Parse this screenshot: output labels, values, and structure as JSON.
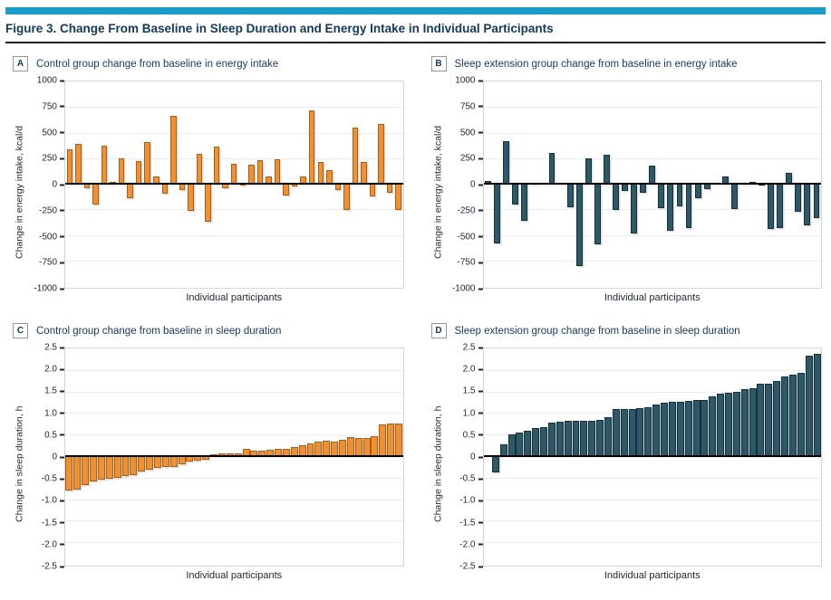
{
  "banner_color": "#1B9CC6",
  "figure": {
    "title": "Figure 3. Change From Baseline in Sleep Duration and Energy Intake in Individual Participants"
  },
  "colors": {
    "control_fill": "#EF9133",
    "control_border": "#A95E17",
    "extension_fill": "#2E5866",
    "extension_border": "#13303E",
    "heading_navy": "#13395E",
    "zero_line": "#000000",
    "gridline": "#ECECEC"
  },
  "chart_data": [
    {
      "panel": "A",
      "type": "bar",
      "title": "Control group change from baseline in energy intake",
      "ylabel": "Change in energy intake, kcal/d",
      "xlabel": "Individual participants",
      "ylim": [
        -1000,
        1000
      ],
      "yticks": [
        "1000",
        "750",
        "500",
        "250",
        "0",
        "-250",
        "-500",
        "-750",
        "-1000"
      ],
      "grid": true,
      "legend": "none",
      "bar_color": "#EF9133",
      "bar_border": "#A95E17",
      "bar_fill_ratio": 0.68,
      "values": [
        335,
        390,
        -45,
        -200,
        370,
        20,
        250,
        -140,
        225,
        405,
        70,
        -100,
        665,
        -65,
        -265,
        290,
        -370,
        365,
        -45,
        195,
        -20,
        185,
        230,
        70,
        240,
        -115,
        -30,
        70,
        720,
        215,
        130,
        -65,
        -255,
        545,
        215,
        -125,
        580,
        -85,
        -255
      ]
    },
    {
      "panel": "B",
      "type": "bar",
      "title": "Sleep extension group change from baseline in energy intake",
      "ylabel": "Change in energy intake, kcal/d",
      "xlabel": "Individual participants",
      "ylim": [
        -1000,
        1000
      ],
      "yticks": [
        "1000",
        "750",
        "500",
        "250",
        "0",
        "-250",
        "-500",
        "-750",
        "-1000"
      ],
      "grid": true,
      "legend": "none",
      "bar_color": "#2E5866",
      "bar_border": "#13303E",
      "bar_fill_ratio": 0.68,
      "values": [
        25,
        -580,
        415,
        -200,
        -365,
        10,
        0,
        300,
        0,
        -230,
        -805,
        250,
        -595,
        285,
        -260,
        -70,
        -485,
        -90,
        180,
        -235,
        -460,
        -225,
        -435,
        -140,
        -55,
        0,
        70,
        -250,
        10,
        15,
        -15,
        -440,
        -435,
        110,
        -270,
        -405,
        -335
      ]
    },
    {
      "panel": "C",
      "type": "bar",
      "title": "Control group change from baseline in sleep duration",
      "ylabel": "Change in sleep duration, h",
      "xlabel": "Individual participants",
      "ylim": [
        -2.5,
        2.5
      ],
      "yticks": [
        "2.5",
        "2.0",
        "1.5",
        "1.0",
        "0.5",
        "0",
        "-0.5",
        "-1.0",
        "-1.5",
        "-2.0",
        "-2.5"
      ],
      "grid": true,
      "legend": "none",
      "bar_color": "#EF9133",
      "bar_border": "#A95E17",
      "bar_fill_ratio": 0.9,
      "values": [
        -0.8,
        -0.78,
        -0.68,
        -0.58,
        -0.55,
        -0.52,
        -0.5,
        -0.47,
        -0.45,
        -0.35,
        -0.32,
        -0.28,
        -0.26,
        -0.25,
        -0.18,
        -0.12,
        -0.1,
        -0.08,
        0.05,
        0.06,
        0.06,
        0.06,
        0.16,
        0.13,
        0.13,
        0.14,
        0.17,
        0.17,
        0.21,
        0.25,
        0.3,
        0.34,
        0.36,
        0.34,
        0.37,
        0.44,
        0.41,
        0.43,
        0.46,
        0.74,
        0.76,
        0.76
      ]
    },
    {
      "panel": "D",
      "type": "bar",
      "title": "Sleep extension group change from baseline in sleep duration",
      "ylabel": "Change in sleep duration, h",
      "xlabel": "Individual participants",
      "ylim": [
        -2.5,
        2.5
      ],
      "yticks": [
        "2.5",
        "2.0",
        "1.5",
        "1.0",
        "0.5",
        "0",
        "-0.5",
        "-1.0",
        "-1.5",
        "-2.0",
        "-2.5"
      ],
      "grid": true,
      "legend": "none",
      "bar_color": "#2E5866",
      "bar_border": "#13303E",
      "bar_fill_ratio": 0.9,
      "values": [
        0,
        -0.38,
        0.27,
        0.51,
        0.55,
        0.58,
        0.65,
        0.67,
        0.77,
        0.8,
        0.81,
        0.81,
        0.81,
        0.81,
        0.84,
        0.9,
        1.09,
        1.09,
        1.09,
        1.12,
        1.13,
        1.19,
        1.24,
        1.26,
        1.27,
        1.29,
        1.3,
        1.31,
        1.39,
        1.46,
        1.48,
        1.5,
        1.56,
        1.58,
        1.68,
        1.69,
        1.75,
        1.85,
        1.9,
        1.94,
        2.33,
        2.38
      ]
    }
  ]
}
